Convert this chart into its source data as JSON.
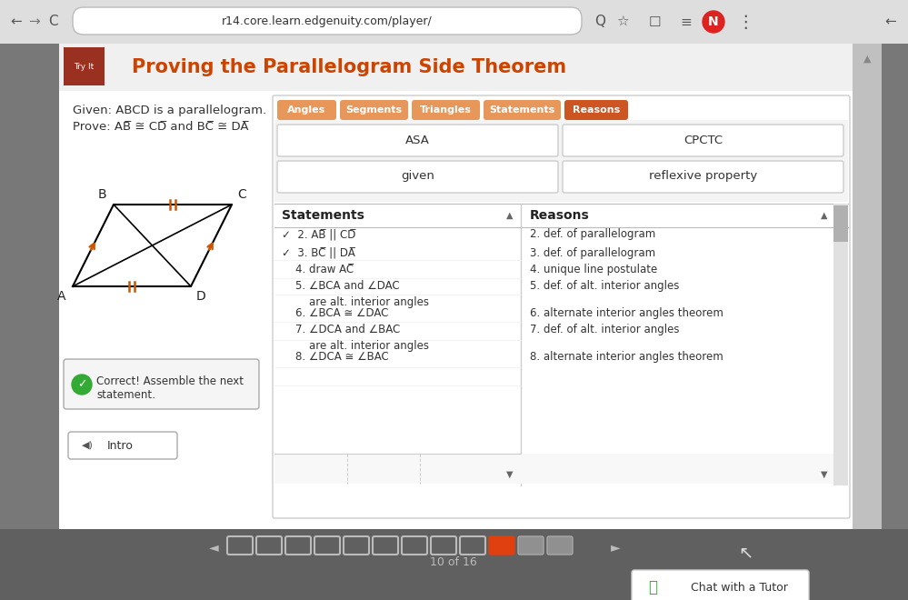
{
  "title": "Proving the Parallelogram Side Theorem",
  "title_color": "#cc4400",
  "browser_bar_bg": "#e4e4e4",
  "url_text": "r14.core.learn.edgenuity.com/player/",
  "main_bg": "#f0f0f0",
  "panel_bg": "#ffffff",
  "header_strip_color": "#e8a07a",
  "header_text_bg": "#f5f5f5",
  "try_it_bg": "#8b3a1a",
  "tab_labels": [
    "Angles",
    "Segments",
    "Triangles",
    "Statements",
    "Reasons"
  ],
  "tab_colors": [
    "#e8975a",
    "#e8975a",
    "#e8975a",
    "#e8975a",
    "#cc5522"
  ],
  "drag_left": [
    "ASA",
    "given"
  ],
  "drag_right": [
    "CPCTC",
    "reflexive property"
  ],
  "given_text": "Given: ABCD is a parallelogram.",
  "prove_text": "Prove: AB̅ ≅ CD̅ and BC̅ ≅ DA̅",
  "stmt_col_header": "Statements",
  "rsn_col_header": "Reasons",
  "statements": [
    "✓  2. AB̅ || CD̅",
    "✓  3. BC̅ || DA̅",
    "    4. draw AC̅",
    "    5. ∠BCA and ∠DAC\n        are alt. interior angles",
    "    6. ∠BCA ≅ ∠DAC",
    "    7. ∠DCA and ∠BAC\n        are alt. interior angles",
    "    8. ∠DCA ≅ ∠BAC"
  ],
  "reasons": [
    "2. def. of parallelogram",
    "3. def. of parallelogram",
    "4. unique line postulate",
    "5. def. of alt. interior angles",
    "6. alternate interior angles theorem",
    "7. def. of alt. interior angles",
    "8. alternate interior angles theorem"
  ],
  "correct_text": "Correct! Assemble the next\nstatement.",
  "intro_btn": "Intro",
  "page_indicator": "10 of 16",
  "chat_btn": "Chat with a Tutor",
  "scrollbar_color": "#bbbbbb",
  "right_edge_bg": "#c8c8c8",
  "bottom_bar_bg": "#606060",
  "nav_sq_empty": "#e0e0e0",
  "nav_sq_active": "#e04010",
  "nav_sq_gray": "#909090"
}
